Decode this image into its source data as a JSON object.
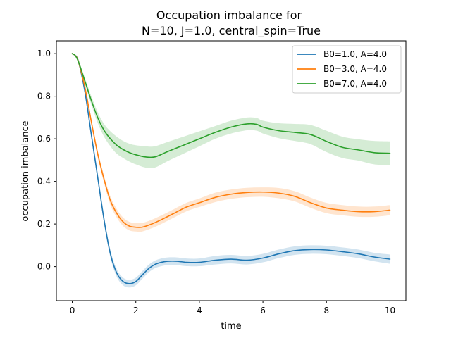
{
  "chart_data": {
    "type": "line",
    "title_line1": "Occupation imbalance for",
    "title_line2": "N=10, J=1.0, central_spin=True",
    "xlabel": "time",
    "ylabel": "occupation imbalance",
    "xlim": [
      -0.5,
      10.5
    ],
    "ylim": [
      -0.16,
      1.06
    ],
    "xticks": [
      0,
      2,
      4,
      6,
      8,
      10
    ],
    "yticks": [
      0.0,
      0.2,
      0.4,
      0.6,
      0.8,
      1.0
    ],
    "xtick_labels": [
      "0",
      "2",
      "4",
      "6",
      "8",
      "10"
    ],
    "ytick_labels": [
      "0.0",
      "0.2",
      "0.4",
      "0.6",
      "0.8",
      "1.0"
    ],
    "grid": false,
    "legend_position": "top-right",
    "series": [
      {
        "name": "B0=1.0, A=4.0",
        "color": "#1f77b4",
        "x": [
          0,
          0.1,
          0.2,
          0.4,
          0.6,
          0.8,
          1.0,
          1.2,
          1.4,
          1.6,
          1.8,
          2.0,
          2.2,
          2.4,
          2.6,
          2.8,
          3.0,
          3.3,
          3.6,
          4.0,
          4.5,
          5.0,
          5.5,
          6.0,
          6.5,
          7.0,
          7.5,
          8.0,
          8.5,
          9.0,
          9.5,
          10.0
        ],
        "y": [
          1.0,
          0.99,
          0.96,
          0.82,
          0.62,
          0.42,
          0.22,
          0.06,
          -0.03,
          -0.07,
          -0.08,
          -0.07,
          -0.04,
          -0.01,
          0.01,
          0.02,
          0.025,
          0.025,
          0.02,
          0.02,
          0.03,
          0.035,
          0.03,
          0.04,
          0.06,
          0.075,
          0.08,
          0.078,
          0.07,
          0.06,
          0.045,
          0.035
        ],
        "band": [
          0.0,
          0.005,
          0.01,
          0.012,
          0.014,
          0.016,
          0.018,
          0.018,
          0.018,
          0.018,
          0.018,
          0.018,
          0.018,
          0.018,
          0.018,
          0.018,
          0.018,
          0.018,
          0.018,
          0.018,
          0.02,
          0.02,
          0.02,
          0.02,
          0.02,
          0.02,
          0.02,
          0.02,
          0.02,
          0.02,
          0.02,
          0.022
        ]
      },
      {
        "name": "B0=3.0, A=4.0",
        "color": "#ff7f0e",
        "x": [
          0,
          0.1,
          0.2,
          0.4,
          0.6,
          0.8,
          1.0,
          1.2,
          1.4,
          1.6,
          1.8,
          2.0,
          2.2,
          2.5,
          2.8,
          3.2,
          3.6,
          4.0,
          4.5,
          5.0,
          5.5,
          6.0,
          6.5,
          7.0,
          7.5,
          8.0,
          8.5,
          9.0,
          9.5,
          10.0
        ],
        "y": [
          1.0,
          0.99,
          0.96,
          0.84,
          0.68,
          0.53,
          0.41,
          0.31,
          0.25,
          0.21,
          0.19,
          0.185,
          0.185,
          0.2,
          0.22,
          0.25,
          0.28,
          0.3,
          0.325,
          0.34,
          0.348,
          0.35,
          0.345,
          0.33,
          0.3,
          0.275,
          0.265,
          0.258,
          0.258,
          0.265
        ],
        "band": [
          0.0,
          0.005,
          0.01,
          0.012,
          0.014,
          0.016,
          0.018,
          0.02,
          0.02,
          0.02,
          0.02,
          0.02,
          0.02,
          0.02,
          0.02,
          0.02,
          0.02,
          0.02,
          0.022,
          0.022,
          0.022,
          0.022,
          0.024,
          0.024,
          0.024,
          0.024,
          0.024,
          0.024,
          0.024,
          0.024
        ]
      },
      {
        "name": "B0=7.0, A=4.0",
        "color": "#2ca02c",
        "x": [
          0,
          0.1,
          0.2,
          0.4,
          0.6,
          0.8,
          1.0,
          1.2,
          1.4,
          1.6,
          1.8,
          2.0,
          2.3,
          2.6,
          3.0,
          3.5,
          4.0,
          4.5,
          5.0,
          5.5,
          5.8,
          6.0,
          6.5,
          7.0,
          7.5,
          8.0,
          8.5,
          9.0,
          9.5,
          10.0
        ],
        "y": [
          1.0,
          0.99,
          0.96,
          0.87,
          0.78,
          0.7,
          0.64,
          0.6,
          0.57,
          0.55,
          0.535,
          0.525,
          0.515,
          0.515,
          0.54,
          0.57,
          0.6,
          0.63,
          0.655,
          0.67,
          0.668,
          0.655,
          0.638,
          0.63,
          0.62,
          0.588,
          0.56,
          0.548,
          0.535,
          0.532
        ],
        "band": [
          0.0,
          0.005,
          0.01,
          0.015,
          0.02,
          0.025,
          0.03,
          0.035,
          0.04,
          0.04,
          0.042,
          0.045,
          0.05,
          0.05,
          0.045,
          0.04,
          0.035,
          0.03,
          0.03,
          0.03,
          0.03,
          0.03,
          0.035,
          0.04,
          0.045,
          0.05,
          0.05,
          0.05,
          0.055,
          0.056
        ]
      }
    ]
  }
}
